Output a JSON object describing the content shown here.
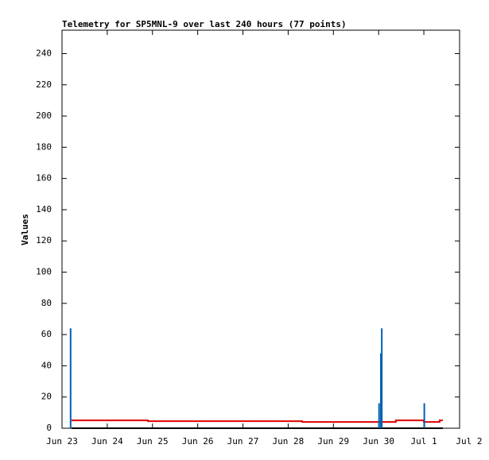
{
  "chart_data": {
    "type": "line",
    "title": "Telemetry for SP5MNL-9 over last 240 hours (77 points)",
    "y_label": "Values",
    "xlim": [
      0,
      8.79
    ],
    "ylim": [
      0,
      255
    ],
    "xticks": [
      {
        "value": 0,
        "label": "Jun 23"
      },
      {
        "value": 1,
        "label": "Jun 24"
      },
      {
        "value": 2,
        "label": "Jun 25"
      },
      {
        "value": 3,
        "label": "Jun 26"
      },
      {
        "value": 4,
        "label": "Jun 27"
      },
      {
        "value": 5,
        "label": "Jun 28"
      },
      {
        "value": 6,
        "label": "Jun 29"
      },
      {
        "value": 7,
        "label": "Jun 30"
      },
      {
        "value": 8,
        "label": "Jul 1"
      },
      {
        "value": 9,
        "label": "Jul 2"
      }
    ],
    "yticks": [
      0,
      20,
      40,
      60,
      80,
      100,
      120,
      140,
      160,
      180,
      200,
      220,
      240
    ],
    "series": [
      {
        "style": "line",
        "color": "#000000",
        "x": [
          0.21,
          8.42
        ],
        "values": [
          0,
          0
        ]
      },
      {
        "style": "line",
        "color": "#e00000",
        "x": [
          0.21,
          1.9,
          1.9,
          5.31,
          5.31,
          7.38,
          7.38,
          8.0,
          8.0,
          8.35,
          8.35,
          8.42
        ],
        "values": [
          5,
          5,
          4.5,
          4.5,
          4,
          4,
          5,
          5,
          4,
          4,
          5,
          5
        ]
      },
      {
        "style": "impulses",
        "color": "#0060b0",
        "x": [
          0.19,
          7.01,
          7.05,
          7.07,
          8.01
        ],
        "values": [
          64,
          16,
          48,
          64,
          16
        ]
      }
    ]
  }
}
